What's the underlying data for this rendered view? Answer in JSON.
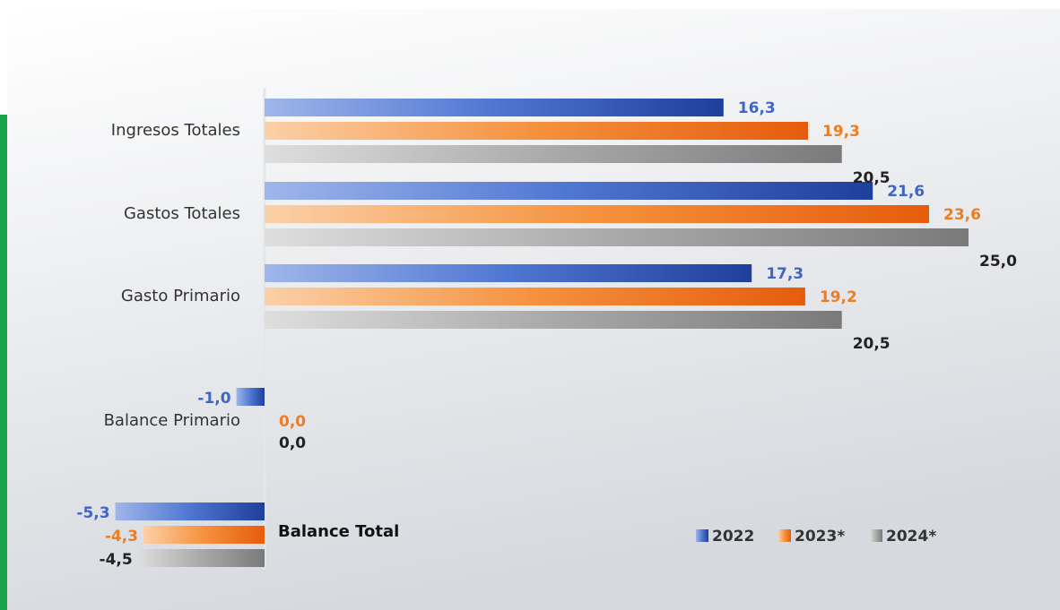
{
  "colors": {
    "series_2022": "#3b62c4",
    "series_2023": "#f07a1e",
    "series_2024": "#8f8f8f",
    "label_2022": "#3f66c5",
    "label_2023": "#ed7d22",
    "label_2024": "#222222",
    "accent_stripe": "#1aa34a",
    "panel_start": "#ffffff",
    "panel_end": "#d6d9de"
  },
  "chart_data": {
    "type": "bar",
    "orientation": "horizontal",
    "categories": [
      "Ingresos Totales",
      "Gastos Totales",
      "Gasto Primario",
      "Balance Primario",
      "Balance Total"
    ],
    "series": [
      {
        "name": "2022",
        "values": [
          16.3,
          21.6,
          17.3,
          -1.0,
          -5.3
        ],
        "labels": [
          "16,3",
          "21,6",
          "17,3",
          "-1,0",
          "-5,3"
        ]
      },
      {
        "name": "2023*",
        "values": [
          19.3,
          23.6,
          19.2,
          0.0,
          -4.3
        ],
        "labels": [
          "19,3",
          "23,6",
          "19,2",
          "0,0",
          "-4,3"
        ]
      },
      {
        "name": "2024*",
        "values": [
          20.5,
          25.0,
          20.5,
          0.0,
          -4.5
        ],
        "labels": [
          "20,5",
          "25,0",
          "20,5",
          "0,0",
          "-4,5"
        ]
      }
    ],
    "xlim": [
      -5.3,
      25.0
    ],
    "grid": false,
    "legend": {
      "position": "bottom-right"
    }
  }
}
